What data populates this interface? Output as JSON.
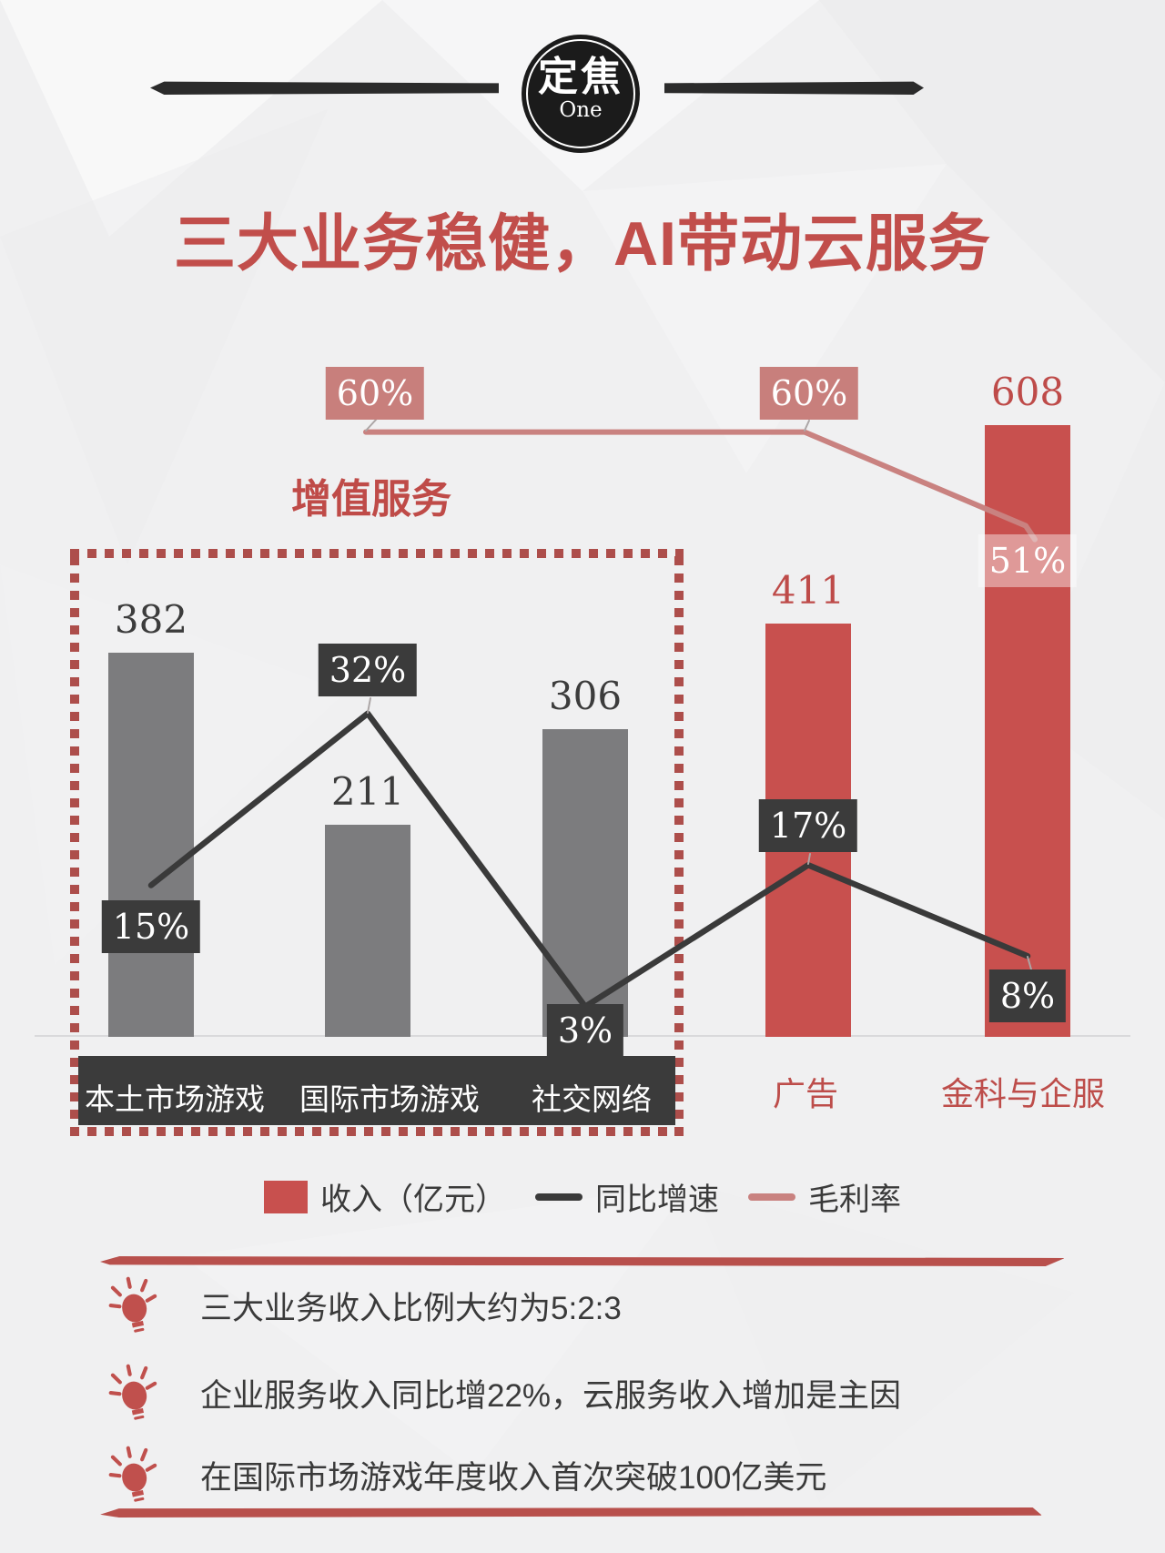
{
  "logo": {
    "main": "定焦",
    "sub": "One"
  },
  "title": "三大业务稳健，AI带动云服务",
  "chart_data": {
    "type": "bar",
    "title": "三大业务稳健，AI带动云服务",
    "categories": [
      "本土市场游戏",
      "国际市场游戏",
      "社交网络",
      "广告",
      "金科与企服"
    ],
    "group_box_label": "增值服务",
    "grouped_categories": [
      "本土市场游戏",
      "国际市场游戏",
      "社交网络"
    ],
    "series": [
      {
        "name": "收入（亿元）",
        "type": "bar",
        "values": [
          382,
          211,
          306,
          411,
          608
        ],
        "colors": [
          "#7C7C7E",
          "#7C7C7E",
          "#7C7C7E",
          "#C8504E",
          "#C8504E"
        ]
      },
      {
        "name": "同比增速",
        "type": "line",
        "unit": "%",
        "values": [
          15,
          32,
          3,
          17,
          8
        ],
        "color": "#3A3A3A"
      },
      {
        "name": "毛利率",
        "type": "line",
        "unit": "%",
        "values": [
          60,
          60,
          null,
          null,
          51
        ],
        "color": "#C98280"
      }
    ],
    "ylim": [
      0,
      650
    ],
    "grid": false,
    "legend_position": "bottom"
  },
  "legend": {
    "items": [
      {
        "label": "收入（亿元）",
        "swatch": "bar",
        "color": "#C8504E"
      },
      {
        "label": "同比增速",
        "swatch": "line",
        "color": "#3A3A3A"
      },
      {
        "label": "毛利率",
        "swatch": "line",
        "color": "#C98280"
      }
    ]
  },
  "insights": [
    {
      "text": "三大业务收入比例大约为5:2:3"
    },
    {
      "text": "企业服务收入同比增22%，云服务收入增加是主因"
    },
    {
      "text": "在国际市场游戏年度收入首次突破100亿美元"
    }
  ],
  "colors": {
    "accent": "#C14E4B",
    "bar_gray": "#7C7C7E",
    "bar_red": "#C8504E",
    "label_box": "#3B3B3B",
    "growth_line": "#3A3A3A",
    "margin_line": "#C98280",
    "dash_border": "#AD4E4B"
  }
}
